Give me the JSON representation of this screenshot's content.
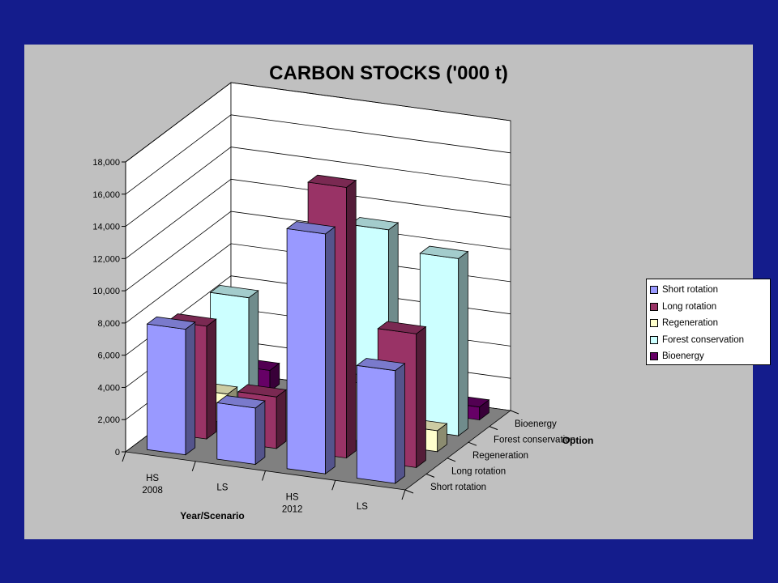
{
  "chart_data": {
    "type": "bar",
    "title": "CARBON STOCKS ('000 t)",
    "xlabel": "Year/Scenario",
    "zlabel": "Option",
    "categories": [
      {
        "line1": "HS",
        "line2": "2008"
      },
      {
        "line1": "LS",
        "line2": ""
      },
      {
        "line1": "HS",
        "line2": "2012"
      },
      {
        "line1": "LS",
        "line2": ""
      }
    ],
    "series": [
      {
        "name": "Short rotation",
        "values": [
          7800,
          3500,
          14900,
          7000
        ],
        "color": "#9999ff"
      },
      {
        "name": "Long rotation",
        "values": [
          7000,
          3200,
          16800,
          8300
        ],
        "color": "#993366"
      },
      {
        "name": "Regeneration",
        "values": [
          1800,
          0,
          3600,
          1300
        ],
        "color": "#ffffcc"
      },
      {
        "name": "Forest conservation",
        "values": [
          6800,
          0,
          12200,
          11000
        ],
        "color": "#ccffff"
      },
      {
        "name": "Bioenergy",
        "values": [
          1300,
          0,
          0,
          800
        ],
        "color": "#660066"
      }
    ],
    "yticks": [
      "0",
      "2,000",
      "4,000",
      "6,000",
      "8,000",
      "10,000",
      "12,000",
      "14,000",
      "16,000",
      "18,000"
    ],
    "ylim": [
      0,
      18000
    ],
    "chart_type_detail": "3-D column",
    "legend_position": "right",
    "grid": true
  }
}
